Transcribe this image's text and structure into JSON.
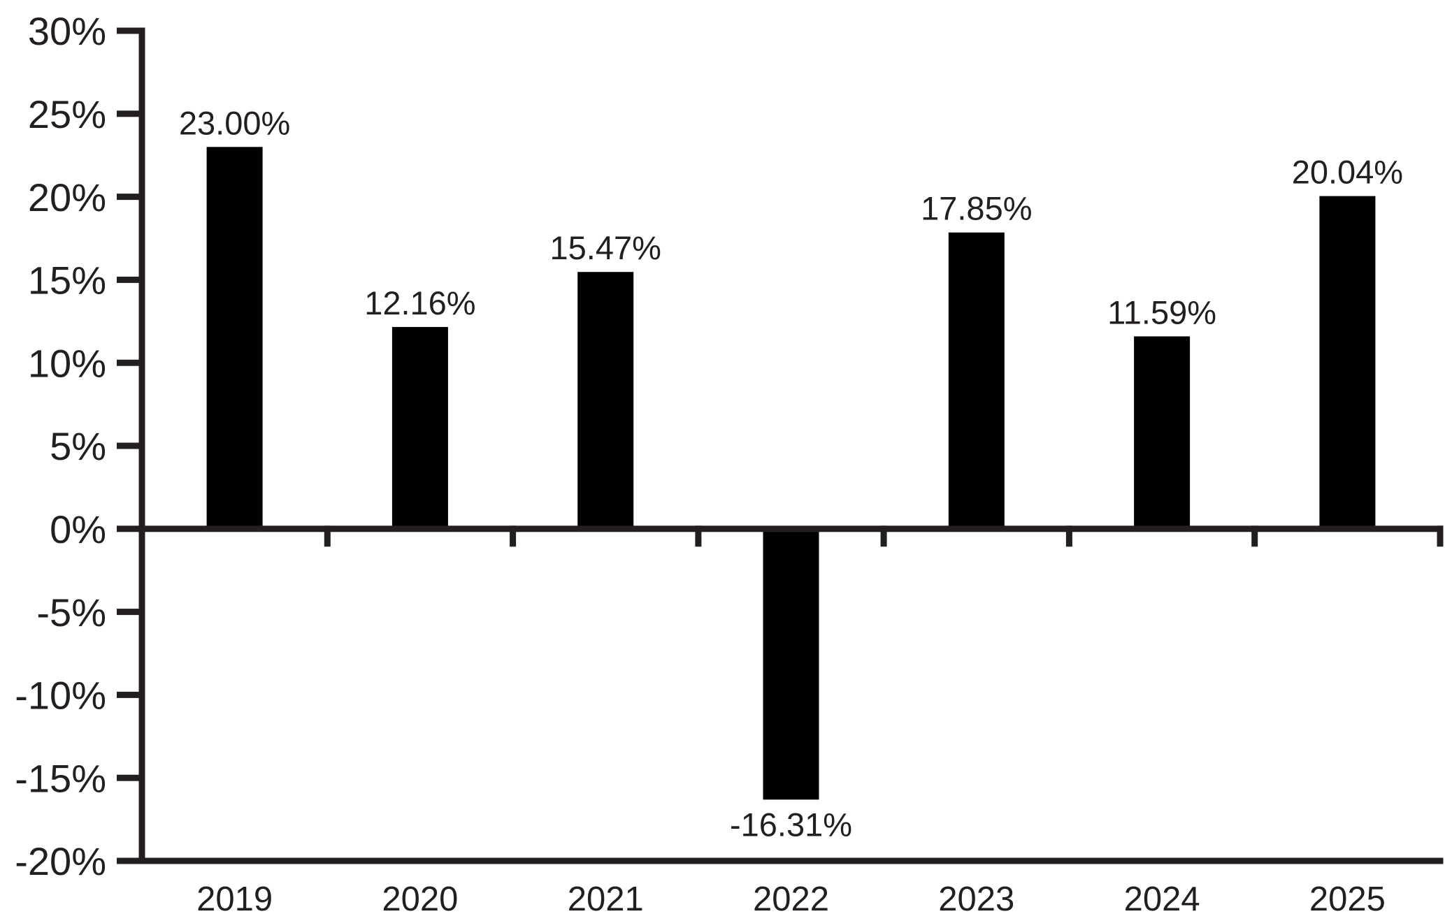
{
  "chart_data": {
    "type": "bar",
    "title": "",
    "xlabel": "",
    "ylabel": "",
    "categories": [
      "2019",
      "2020",
      "2021",
      "2022",
      "2023",
      "2024",
      "2025"
    ],
    "values": [
      23.0,
      12.16,
      15.47,
      -16.31,
      17.85,
      11.59,
      20.04
    ],
    "bar_labels": [
      "23.00%",
      "12.16%",
      "15.47%",
      "-16.31%",
      "17.85%",
      "11.59%",
      "20.04%"
    ],
    "ylim": [
      -20,
      30
    ],
    "ytick_step": 5,
    "yticks": [
      30,
      25,
      20,
      15,
      10,
      5,
      0,
      -5,
      -10,
      -15,
      -20
    ],
    "ytick_labels": [
      "30%",
      "25%",
      "20%",
      "15%",
      "10%",
      "5%",
      "0%",
      "-5%",
      "-10%",
      "-15%",
      "-20%"
    ],
    "grid": false,
    "legend": null,
    "colors": {
      "bar": "#000000",
      "axis": "#231f20",
      "text": "#231f20",
      "background": "#ffffff"
    }
  }
}
